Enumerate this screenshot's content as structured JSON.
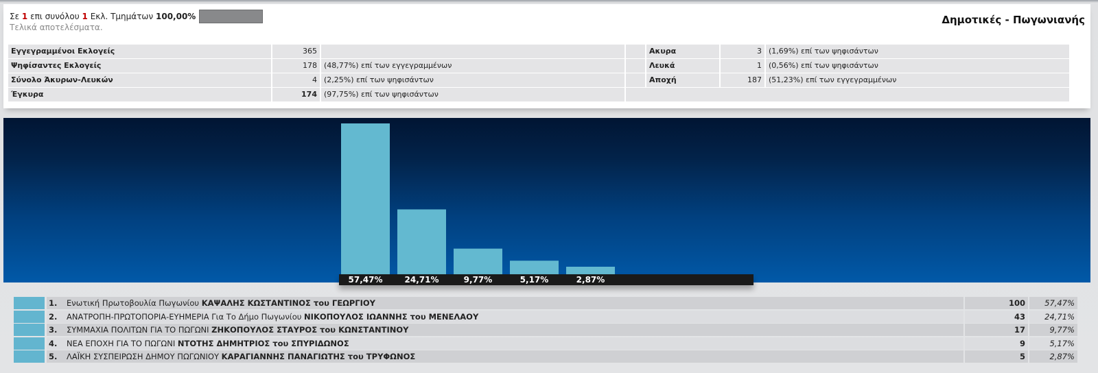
{
  "status": {
    "prefix": "Σε",
    "counted": "1",
    "middle": "επι συνόλου",
    "total": "1",
    "suffix": "Εκλ. Τμημάτων",
    "percent": "100,00%",
    "progress_fraction": 1.0,
    "final_text": "Τελικά αποτελέσματα."
  },
  "election_title": "Δημοτικές - Πωγωνιανής",
  "stats": {
    "left": [
      {
        "label": "Εγγεγραμμένοι Εκλογείς",
        "value": "365",
        "note": ""
      },
      {
        "label": "Ψηφίσαντες Εκλογείς",
        "value": "178",
        "note": "(48,77%) επί των εγγεγραμμένων"
      },
      {
        "label": "Σύνολο Άκυρων-Λευκών",
        "value": "4",
        "note": "(2,25%) επί των ψηφισάντων"
      },
      {
        "label": "Έγκυρα",
        "value": "174",
        "note": "(97,75%) επί των ψηφισάντων"
      }
    ],
    "right": [
      {
        "label": "Ακυρα",
        "value": "3",
        "note": "(1,69%) επί των ψηφισάντων"
      },
      {
        "label": "Λευκά",
        "value": "1",
        "note": "(0,56%) επί των ψηφισάντων"
      },
      {
        "label": "Αποχή",
        "value": "187",
        "note": "(51,23%) επί των εγγεγραμμένων"
      }
    ]
  },
  "chart_data": {
    "type": "bar",
    "categories": [
      "1",
      "2",
      "3",
      "4",
      "5"
    ],
    "values": [
      57.47,
      24.71,
      9.77,
      5.17,
      2.87
    ],
    "labels": [
      "57,47%",
      "24,71%",
      "9,77%",
      "5,17%",
      "2,87%"
    ],
    "ylim": [
      0,
      57.47
    ],
    "bar_color": "#63b9d0",
    "grid": false
  },
  "results": [
    {
      "idx": "1.",
      "party": "Ενωτική Πρωτοβουλία Πωγωνίου",
      "candidate": "ΚΑΨΑΛΗΣ ΚΩΣΤΑΝΤΙΝΟΣ του ΓΕΩΡΓΙΟΥ",
      "votes": "100",
      "pct": "57,47%"
    },
    {
      "idx": "2.",
      "party": "ΑΝΑΤΡΟΠΗ-ΠΡΩΤΟΠΟΡΙΑ-ΕΥΗΜΕΡΙΑ Για Το Δήμο Πωγωνίου",
      "candidate": "ΝΙΚΟΠΟΥΛΟΣ ΙΩΑΝΝΗΣ του ΜΕΝΕΛΑΟΥ",
      "votes": "43",
      "pct": "24,71%"
    },
    {
      "idx": "3.",
      "party": "ΣΥΜΜΑΧΙΑ ΠΟΛΙΤΩΝ ΓΙΑ ΤΟ ΠΩΓΩΝΙ",
      "candidate": "ΖΗΚΟΠΟΥΛΟΣ ΣΤΑΥΡΟΣ του ΚΩΝΣΤΑΝΤΙΝΟΥ",
      "votes": "17",
      "pct": "9,77%"
    },
    {
      "idx": "4.",
      "party": "ΝΕΑ ΕΠΟΧΗ ΓΙΑ ΤΟ ΠΩΓΩΝΙ",
      "candidate": "ΝΤΟΤΗΣ ΔΗΜΗΤΡΙΟΣ του ΣΠΥΡΙΔΩΝΟΣ",
      "votes": "9",
      "pct": "5,17%"
    },
    {
      "idx": "5.",
      "party": "ΛΑΪΚΗ ΣΥΣΠΕΙΡΩΣΗ ΔΗΜΟΥ ΠΩΓΩΝΙΟΥ",
      "candidate": "ΚΑΡΑΓΙΑΝΝΗΣ ΠΑΝΑΓΙΩΤΗΣ του ΤΡΥΦΩΝΟΣ",
      "votes": "5",
      "pct": "2,87%"
    }
  ]
}
